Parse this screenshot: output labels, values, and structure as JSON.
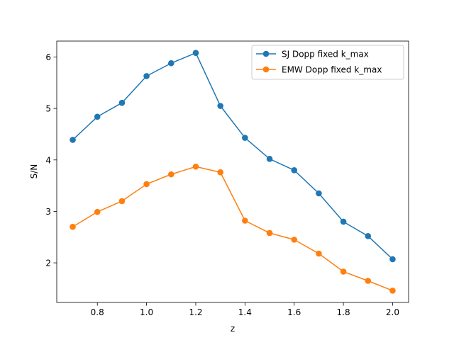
{
  "chart_data": {
    "type": "line",
    "title": "",
    "xlabel": "z",
    "ylabel": "S/N",
    "x": [
      0.7,
      0.8,
      0.9,
      1.0,
      1.1,
      1.2,
      1.3,
      1.4,
      1.5,
      1.6,
      1.7,
      1.8,
      1.9,
      2.0
    ],
    "xlim": [
      0.635,
      2.065
    ],
    "ylim": [
      1.23,
      6.31
    ],
    "xticks": [
      "0.8",
      "1.0",
      "1.2",
      "1.4",
      "1.6",
      "1.8",
      "2.0"
    ],
    "yticks": [
      "2",
      "3",
      "4",
      "5",
      "6"
    ],
    "grid": false,
    "legend_position": "top-right",
    "series": [
      {
        "name": "SJ Dopp fixed k_max",
        "color": "#1f77b4",
        "marker": "circle",
        "values": [
          4.39,
          4.84,
          5.11,
          5.63,
          5.88,
          6.08,
          5.05,
          4.43,
          4.02,
          3.8,
          3.35,
          2.8,
          2.52,
          2.07
        ]
      },
      {
        "name": "EMW Dopp fixed k_max",
        "color": "#ff7f0e",
        "marker": "circle",
        "values": [
          2.7,
          2.99,
          3.2,
          3.53,
          3.72,
          3.87,
          3.76,
          2.82,
          2.58,
          2.45,
          2.18,
          1.83,
          1.65,
          1.46
        ]
      }
    ]
  }
}
